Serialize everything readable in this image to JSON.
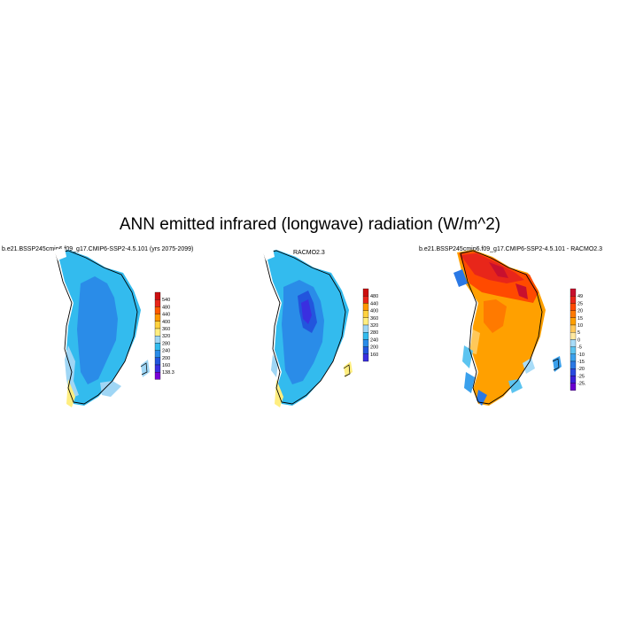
{
  "title": "ANN emitted infrared (longwave) radiation (W/m^2)",
  "panels": [
    {
      "id": "model",
      "title": "b.e21.BSSP245cmip6.f09_g17.CMIP6-SSP2-4.5.101 (yrs 2075-2099)",
      "legend_labels": [
        "540",
        "480",
        "440",
        "400",
        "360",
        "320",
        "280",
        "240",
        "200",
        "160",
        "138.3"
      ],
      "legend_colors": [
        "#cc1010",
        "#e8261a",
        "#ff5a00",
        "#ff9900",
        "#ffd23f",
        "#ffee80",
        "#9fd6f5",
        "#33bbee",
        "#2a8ce8",
        "#2255dd",
        "#3a2fe0",
        "#7a00d6"
      ]
    },
    {
      "id": "obs",
      "title": "RACMO2.3",
      "legend_labels": [
        "480",
        "440",
        "400",
        "360",
        "320",
        "280",
        "240",
        "200",
        "160"
      ],
      "legend_colors": [
        "#cc1010",
        "#e8261a",
        "#ff9900",
        "#ffd23f",
        "#ffee80",
        "#9fd6f5",
        "#33bbee",
        "#2a8ce8",
        "#2255dd",
        "#3a2fe0"
      ]
    },
    {
      "id": "diff",
      "title": "b.e21.BSSP245cmip6.f09_g17.CMIP6-SSP2-4.5.101 - RACMO2.3",
      "legend_labels": [
        "49",
        "25",
        "20",
        "15",
        "10",
        "5",
        "0",
        "-5",
        "-10",
        "-15",
        "-20",
        "-25",
        "-25.11"
      ],
      "legend_colors": [
        "#c8102e",
        "#e8261a",
        "#ff4a00",
        "#ff7a00",
        "#ffa000",
        "#ffc85a",
        "#ffe8a0",
        "#a8dcf8",
        "#5cc4f0",
        "#3aa0ec",
        "#2a78e4",
        "#2a4ae0",
        "#3a20d8",
        "#6a00d0"
      ]
    }
  ]
}
